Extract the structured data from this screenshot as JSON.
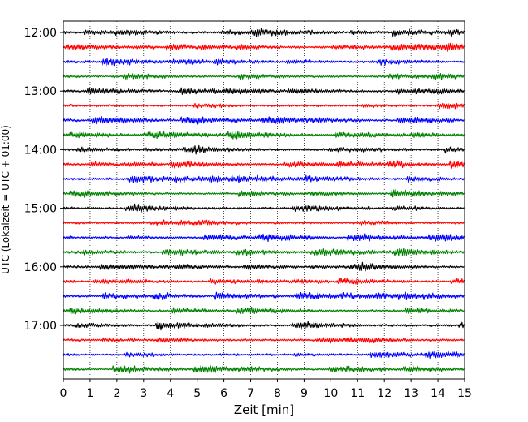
{
  "chart_data": {
    "type": "line",
    "title": "",
    "xlabel": "Zeit  [min]",
    "ylabel": "UTC (Lokalzeit = UTC + 01:00)",
    "xlim": [
      0,
      15
    ],
    "xticks": [
      "0",
      "1",
      "2",
      "3",
      "4",
      "5",
      "6",
      "7",
      "8",
      "9",
      "10",
      "11",
      "12",
      "13",
      "14",
      "15"
    ],
    "yticks": [
      {
        "label": "12:00",
        "trace": 0
      },
      {
        "label": "13:00",
        "trace": 4
      },
      {
        "label": "14:00",
        "trace": 8
      },
      {
        "label": "15:00",
        "trace": 12
      },
      {
        "label": "16:00",
        "trace": 16
      },
      {
        "label": "17:00",
        "trace": 20
      }
    ],
    "trace_interval_min": 15,
    "trace_count": 24,
    "trace_colors": [
      "#000000",
      "#ff0000",
      "#0000ff",
      "#008000"
    ],
    "grid": "vertical-dotted",
    "legend": "none"
  }
}
